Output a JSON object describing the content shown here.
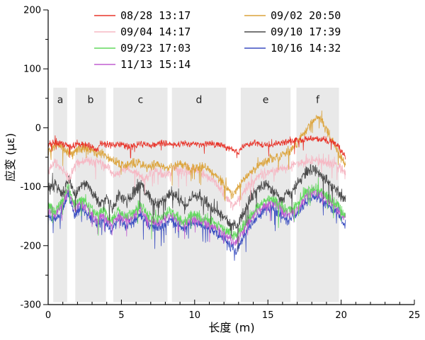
{
  "chart_data": {
    "type": "line",
    "title": "",
    "xlabel": "长度 (m)",
    "ylabel": "应变 (με)",
    "xlim": [
      0,
      25
    ],
    "ylim": [
      -300,
      200
    ],
    "x_major_ticks": [
      0,
      5,
      10,
      15,
      20,
      25
    ],
    "x_minor_step": 1,
    "y_major_ticks": [
      -300,
      -200,
      -100,
      0,
      100,
      200
    ],
    "y_minor_step": 50,
    "grid": false,
    "legend_position": "top-center",
    "bands": {
      "fill": "#e9e9e9",
      "top": 68,
      "bottom": -296,
      "label_y": 42,
      "items": [
        {
          "label": "a",
          "x0": 0.35,
          "x1": 1.3
        },
        {
          "label": "b",
          "x0": 1.85,
          "x1": 3.95
        },
        {
          "label": "c",
          "x0": 4.45,
          "x1": 8.15
        },
        {
          "label": "d",
          "x0": 8.45,
          "x1": 12.15
        },
        {
          "label": "e",
          "x0": 13.15,
          "x1": 16.55
        },
        {
          "label": "f",
          "x0": 16.95,
          "x1": 19.85
        }
      ]
    },
    "legend": {
      "cols_x": [
        133,
        345
      ],
      "row_y0": 22,
      "row_dy": 23,
      "entries": [
        {
          "series": 0,
          "col": 0,
          "row": 0
        },
        {
          "series": 1,
          "col": 0,
          "row": 1
        },
        {
          "series": 2,
          "col": 0,
          "row": 2
        },
        {
          "series": 3,
          "col": 0,
          "row": 3
        },
        {
          "series": 4,
          "col": 1,
          "row": 0
        },
        {
          "series": 5,
          "col": 1,
          "row": 1
        },
        {
          "series": 6,
          "col": 1,
          "row": 2
        }
      ]
    },
    "draw_order": [
      6,
      3,
      2,
      5,
      1,
      4,
      0
    ],
    "series": [
      {
        "id": "s0828",
        "name": "08/28 13:17",
        "color": "#e8362c",
        "noise": 7,
        "points": [
          [
            0,
            -30
          ],
          [
            0.3,
            -25
          ],
          [
            1,
            -28
          ],
          [
            1.6,
            -32
          ],
          [
            2.2,
            -27
          ],
          [
            2.8,
            -30
          ],
          [
            3.4,
            -38
          ],
          [
            3.6,
            -25
          ],
          [
            4.2,
            -30
          ],
          [
            5,
            -28
          ],
          [
            5.6,
            -33
          ],
          [
            6.2,
            -27
          ],
          [
            7,
            -30
          ],
          [
            7.8,
            -26
          ],
          [
            8.6,
            -30
          ],
          [
            9.4,
            -26
          ],
          [
            10.2,
            -29
          ],
          [
            11,
            -26
          ],
          [
            11.8,
            -30
          ],
          [
            12.4,
            -35
          ],
          [
            12.9,
            -42
          ],
          [
            13.4,
            -30
          ],
          [
            14,
            -26
          ],
          [
            15,
            -29
          ],
          [
            16,
            -25
          ],
          [
            17,
            -22
          ],
          [
            18,
            -17
          ],
          [
            18.8,
            -20
          ],
          [
            19.4,
            -24
          ],
          [
            19.9,
            -35
          ],
          [
            20.3,
            -52
          ]
        ]
      },
      {
        "id": "s0904",
        "name": "09/04 14:17",
        "color": "#f6b8c4",
        "noise": 10,
        "points": [
          [
            0,
            -75
          ],
          [
            0.4,
            -60
          ],
          [
            0.9,
            -68
          ],
          [
            1.4,
            -88
          ],
          [
            1.9,
            -62
          ],
          [
            2.6,
            -55
          ],
          [
            3.4,
            -60
          ],
          [
            4.1,
            -68
          ],
          [
            4.6,
            -80
          ],
          [
            5.2,
            -70
          ],
          [
            6,
            -76
          ],
          [
            6.6,
            -88
          ],
          [
            7.2,
            -72
          ],
          [
            8,
            -80
          ],
          [
            8.6,
            -70
          ],
          [
            9.3,
            -76
          ],
          [
            10,
            -70
          ],
          [
            10.8,
            -82
          ],
          [
            11.5,
            -95
          ],
          [
            12.1,
            -115
          ],
          [
            12.6,
            -132
          ],
          [
            13.1,
            -118
          ],
          [
            13.6,
            -100
          ],
          [
            14.2,
            -86
          ],
          [
            15,
            -76
          ],
          [
            16,
            -70
          ],
          [
            17,
            -62
          ],
          [
            18,
            -55
          ],
          [
            18.8,
            -58
          ],
          [
            19.5,
            -62
          ],
          [
            20,
            -70
          ],
          [
            20.3,
            -80
          ]
        ]
      },
      {
        "id": "s0923",
        "name": "09/23 17:03",
        "color": "#63d95f",
        "noise": 11,
        "points": [
          [
            0,
            -132
          ],
          [
            0.5,
            -142
          ],
          [
            1,
            -120
          ],
          [
            1.4,
            -98
          ],
          [
            1.8,
            -132
          ],
          [
            2.3,
            -120
          ],
          [
            2.8,
            -134
          ],
          [
            3.3,
            -148
          ],
          [
            3.8,
            -140
          ],
          [
            4.3,
            -158
          ],
          [
            4.8,
            -140
          ],
          [
            5.3,
            -150
          ],
          [
            5.8,
            -144
          ],
          [
            6.3,
            -130
          ],
          [
            6.8,
            -148
          ],
          [
            7.3,
            -156
          ],
          [
            7.8,
            -150
          ],
          [
            8.3,
            -140
          ],
          [
            8.8,
            -150
          ],
          [
            9.3,
            -160
          ],
          [
            9.8,
            -146
          ],
          [
            10.3,
            -150
          ],
          [
            10.8,
            -156
          ],
          [
            11.3,
            -160
          ],
          [
            11.8,
            -168
          ],
          [
            12.3,
            -176
          ],
          [
            12.8,
            -182
          ],
          [
            13.3,
            -168
          ],
          [
            13.8,
            -148
          ],
          [
            14.3,
            -134
          ],
          [
            14.8,
            -124
          ],
          [
            15.3,
            -120
          ],
          [
            15.8,
            -130
          ],
          [
            16.3,
            -140
          ],
          [
            16.8,
            -134
          ],
          [
            17.3,
            -118
          ],
          [
            17.8,
            -104
          ],
          [
            18.3,
            -100
          ],
          [
            18.8,
            -110
          ],
          [
            19.3,
            -120
          ],
          [
            19.8,
            -132
          ],
          [
            20.3,
            -152
          ]
        ]
      },
      {
        "id": "s1113",
        "name": "11/13 15:14",
        "color": "#c05fd0",
        "noise": 11,
        "points": [
          [
            0,
            -138
          ],
          [
            0.5,
            -148
          ],
          [
            1,
            -128
          ],
          [
            1.4,
            -104
          ],
          [
            1.8,
            -140
          ],
          [
            2.3,
            -128
          ],
          [
            2.8,
            -142
          ],
          [
            3.3,
            -156
          ],
          [
            3.8,
            -148
          ],
          [
            4.3,
            -166
          ],
          [
            4.8,
            -148
          ],
          [
            5.3,
            -158
          ],
          [
            5.8,
            -152
          ],
          [
            6.3,
            -138
          ],
          [
            6.8,
            -156
          ],
          [
            7.3,
            -162
          ],
          [
            7.8,
            -158
          ],
          [
            8.3,
            -148
          ],
          [
            8.8,
            -156
          ],
          [
            9.3,
            -166
          ],
          [
            9.8,
            -152
          ],
          [
            10.3,
            -156
          ],
          [
            10.8,
            -162
          ],
          [
            11.3,
            -168
          ],
          [
            11.8,
            -176
          ],
          [
            12.3,
            -186
          ],
          [
            12.8,
            -196
          ],
          [
            13.3,
            -178
          ],
          [
            13.8,
            -155
          ],
          [
            14.3,
            -140
          ],
          [
            14.8,
            -132
          ],
          [
            15.3,
            -128
          ],
          [
            15.8,
            -138
          ],
          [
            16.3,
            -148
          ],
          [
            16.8,
            -142
          ],
          [
            17.3,
            -128
          ],
          [
            17.8,
            -112
          ],
          [
            18.3,
            -108
          ],
          [
            18.8,
            -118
          ],
          [
            19.3,
            -128
          ],
          [
            19.8,
            -138
          ],
          [
            20.3,
            -158
          ]
        ]
      },
      {
        "id": "s0902",
        "name": "09/02 20:50",
        "color": "#dca43c",
        "noise": 10,
        "points": [
          [
            0,
            -38
          ],
          [
            0.5,
            -30
          ],
          [
            1,
            -35
          ],
          [
            1.6,
            -45
          ],
          [
            2.2,
            -34
          ],
          [
            3,
            -40
          ],
          [
            3.8,
            -45
          ],
          [
            4.5,
            -55
          ],
          [
            5.2,
            -65
          ],
          [
            6,
            -58
          ],
          [
            6.8,
            -68
          ],
          [
            7.5,
            -62
          ],
          [
            8.2,
            -70
          ],
          [
            9,
            -60
          ],
          [
            9.8,
            -70
          ],
          [
            10.6,
            -64
          ],
          [
            11.4,
            -80
          ],
          [
            12,
            -95
          ],
          [
            12.6,
            -115
          ],
          [
            13,
            -100
          ],
          [
            13.6,
            -80
          ],
          [
            14.2,
            -68
          ],
          [
            15,
            -55
          ],
          [
            15.8,
            -48
          ],
          [
            16.4,
            -40
          ],
          [
            17,
            -25
          ],
          [
            17.6,
            -5
          ],
          [
            18.1,
            12
          ],
          [
            18.5,
            18
          ],
          [
            18.9,
            0
          ],
          [
            19.3,
            -18
          ],
          [
            19.7,
            -35
          ],
          [
            20.1,
            -55
          ],
          [
            20.3,
            -62
          ]
        ]
      },
      {
        "id": "s0910",
        "name": "09/10 17:39",
        "color": "#4a4a4a",
        "noise": 13,
        "points": [
          [
            0,
            -105
          ],
          [
            0.5,
            -95
          ],
          [
            1,
            -112
          ],
          [
            1.4,
            -85
          ],
          [
            1.8,
            -115
          ],
          [
            2.2,
            -98
          ],
          [
            2.6,
            -92
          ],
          [
            3,
            -110
          ],
          [
            3.5,
            -128
          ],
          [
            4,
            -118
          ],
          [
            4.4,
            -138
          ],
          [
            4.9,
            -112
          ],
          [
            5.4,
            -124
          ],
          [
            5.9,
            -108
          ],
          [
            6.4,
            -96
          ],
          [
            6.9,
            -118
          ],
          [
            7.4,
            -130
          ],
          [
            7.9,
            -124
          ],
          [
            8.4,
            -110
          ],
          [
            8.9,
            -120
          ],
          [
            9.4,
            -132
          ],
          [
            9.9,
            -112
          ],
          [
            10.4,
            -120
          ],
          [
            10.9,
            -130
          ],
          [
            11.4,
            -140
          ],
          [
            11.9,
            -150
          ],
          [
            12.4,
            -162
          ],
          [
            12.9,
            -168
          ],
          [
            13.4,
            -140
          ],
          [
            13.9,
            -115
          ],
          [
            14.4,
            -102
          ],
          [
            14.9,
            -96
          ],
          [
            15.4,
            -108
          ],
          [
            15.9,
            -120
          ],
          [
            16.4,
            -114
          ],
          [
            16.9,
            -100
          ],
          [
            17.4,
            -82
          ],
          [
            17.9,
            -70
          ],
          [
            18.4,
            -74
          ],
          [
            18.9,
            -88
          ],
          [
            19.4,
            -98
          ],
          [
            19.9,
            -112
          ],
          [
            20.3,
            -124
          ]
        ]
      },
      {
        "id": "s1016",
        "name": "10/16 14:32",
        "color": "#3b4fc1",
        "noise": 11,
        "points": [
          [
            0,
            -148
          ],
          [
            0.5,
            -158
          ],
          [
            1,
            -136
          ],
          [
            1.4,
            -112
          ],
          [
            1.8,
            -148
          ],
          [
            2.3,
            -136
          ],
          [
            2.8,
            -150
          ],
          [
            3.3,
            -164
          ],
          [
            3.8,
            -156
          ],
          [
            4.3,
            -174
          ],
          [
            4.8,
            -156
          ],
          [
            5.3,
            -166
          ],
          [
            5.8,
            -160
          ],
          [
            6.3,
            -146
          ],
          [
            6.8,
            -164
          ],
          [
            7.3,
            -170
          ],
          [
            7.8,
            -166
          ],
          [
            8.3,
            -156
          ],
          [
            8.8,
            -164
          ],
          [
            9.3,
            -174
          ],
          [
            9.8,
            -160
          ],
          [
            10.3,
            -164
          ],
          [
            10.8,
            -170
          ],
          [
            11.3,
            -175
          ],
          [
            11.8,
            -184
          ],
          [
            12.3,
            -196
          ],
          [
            12.8,
            -210
          ],
          [
            13.3,
            -188
          ],
          [
            13.8,
            -165
          ],
          [
            14.3,
            -150
          ],
          [
            14.8,
            -140
          ],
          [
            15.3,
            -136
          ],
          [
            15.8,
            -146
          ],
          [
            16.3,
            -156
          ],
          [
            16.8,
            -150
          ],
          [
            17.3,
            -136
          ],
          [
            17.8,
            -120
          ],
          [
            18.3,
            -115
          ],
          [
            18.8,
            -125
          ],
          [
            19.3,
            -136
          ],
          [
            19.8,
            -146
          ],
          [
            20.3,
            -164
          ]
        ]
      }
    ]
  }
}
